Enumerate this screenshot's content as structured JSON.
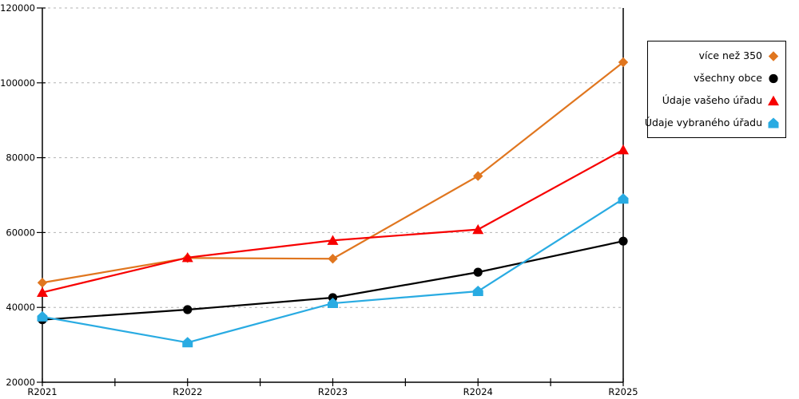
{
  "page": {
    "background": "#FFFFFF"
  },
  "chart_data": {
    "type": "line",
    "title": "",
    "xlabel": "",
    "ylabel": "",
    "categories": [
      "R2021",
      "R2022",
      "R2023",
      "R2024",
      "R2025"
    ],
    "series": [
      {
        "name": "více než 350",
        "color": "#E0761F",
        "marker": "diamond",
        "values": [
          46600,
          53200,
          53000,
          75100,
          105500
        ]
      },
      {
        "name": "všechny obce",
        "color": "#000000",
        "marker": "circle",
        "values": [
          36700,
          39400,
          42600,
          49400,
          57700
        ]
      },
      {
        "name": "Údaje vašeho úřadu",
        "color": "#F70000",
        "marker": "triangle",
        "values": [
          44000,
          53300,
          57900,
          60800,
          82100
        ]
      },
      {
        "name": "Údaje vybraného úřadu",
        "color": "#29ABE2",
        "marker": "pentagon",
        "values": [
          37500,
          30600,
          41100,
          44300,
          69000
        ]
      }
    ],
    "ylim": [
      20000,
      120000
    ],
    "ytick_step": 20000,
    "ytick_labels": [
      "20000",
      "40000",
      "60000",
      "80000",
      "100000",
      "120000"
    ],
    "grid": "horizontal-dashed",
    "gridline_color": "#B3B3B3",
    "axis_color": "#000000",
    "legend_position": "top-right-outside"
  }
}
